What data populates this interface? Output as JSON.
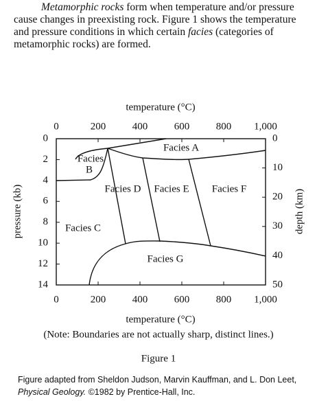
{
  "intro": {
    "part1": "Metamorphic rocks",
    "part2": " form when temperature and/or pressure cause changes in preexisting rock. Figure 1 shows the temperature and pressure conditions in which certain ",
    "part3": "facies",
    "part4": " (categories of metamorphic rocks) are formed."
  },
  "figure": {
    "top_axis_title": "temperature (°C)",
    "bottom_axis_title": "temperature (°C)",
    "left_axis_title": "pressure (kb)",
    "right_axis_title": "depth (km)",
    "temperature_ticks": [
      "0",
      "200",
      "400",
      "600",
      "800",
      "1,000"
    ],
    "pressure_ticks": [
      "0",
      "2",
      "4",
      "6",
      "8",
      "10",
      "12",
      "14"
    ],
    "depth_ticks": [
      "0",
      "10",
      "20",
      "30",
      "40",
      "50"
    ],
    "regions": {
      "a": "Facies A",
      "b1": "Facies",
      "b2": "B",
      "c": "Facies C",
      "d": "Facies D",
      "e": "Facies E",
      "f": "Facies F",
      "g": "Facies G"
    },
    "note": "(Note: Boundaries are not actually sharp, distinct lines.)",
    "label": "Figure 1"
  },
  "caption": {
    "part1": "Figure adapted from Sheldon Judson, Marvin Kauffman, and L. Don Leet, ",
    "part2": "Physical Geology.",
    "part3": " ©1982 by Prentice-Hall, Inc."
  }
}
